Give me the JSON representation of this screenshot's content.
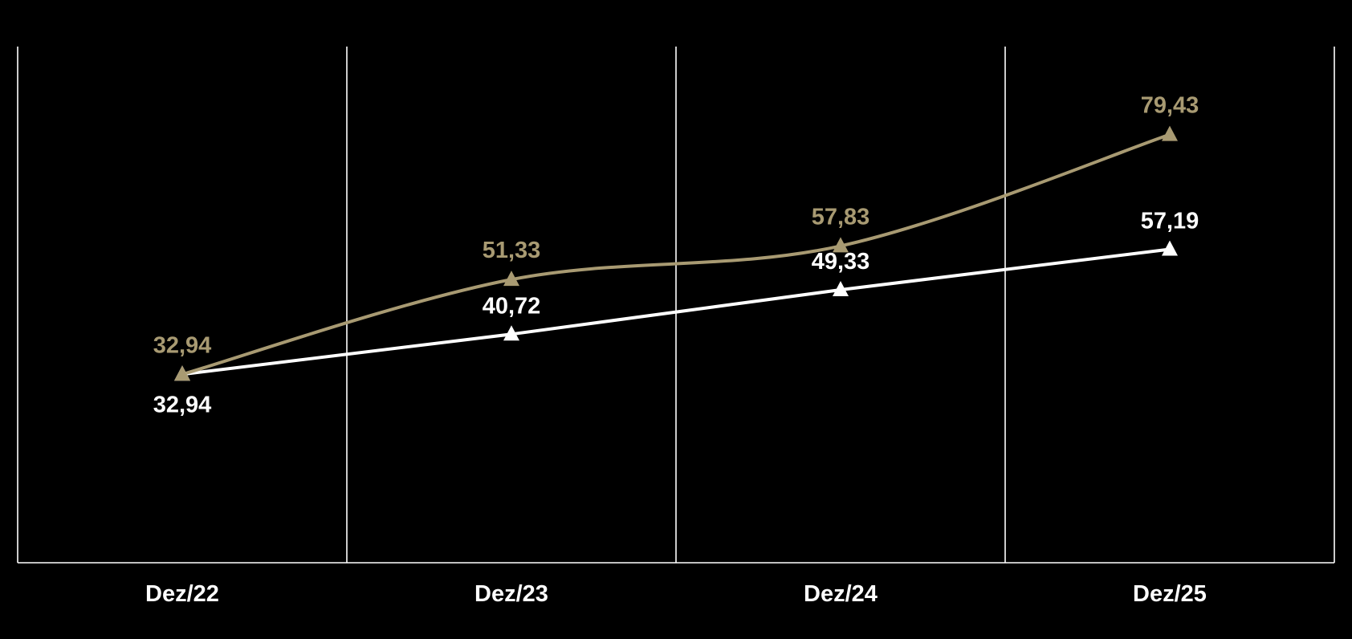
{
  "chart_data": {
    "type": "line",
    "categories": [
      "Dez/22",
      "Dez/23",
      "Dez/24",
      "Dez/25"
    ],
    "series": [
      {
        "values": [
          32.94,
          51.33,
          57.83,
          79.43
        ],
        "labels": [
          "32,94",
          "51,33",
          "57,83",
          "79,43"
        ],
        "color": "#a89a72",
        "marker": "triangle",
        "smooth": true
      },
      {
        "values": [
          32.94,
          40.72,
          49.33,
          57.19
        ],
        "labels": [
          "32,94",
          "40,72",
          "49,33",
          "57,19"
        ],
        "color": "#ffffff",
        "marker": "triangle",
        "smooth": false
      }
    ],
    "ylim": [
      -3.6,
      96.5
    ],
    "grid": "vertical",
    "background": "#000000",
    "axis_color": "#ffffff",
    "tick_label_color": "#ffffff"
  }
}
